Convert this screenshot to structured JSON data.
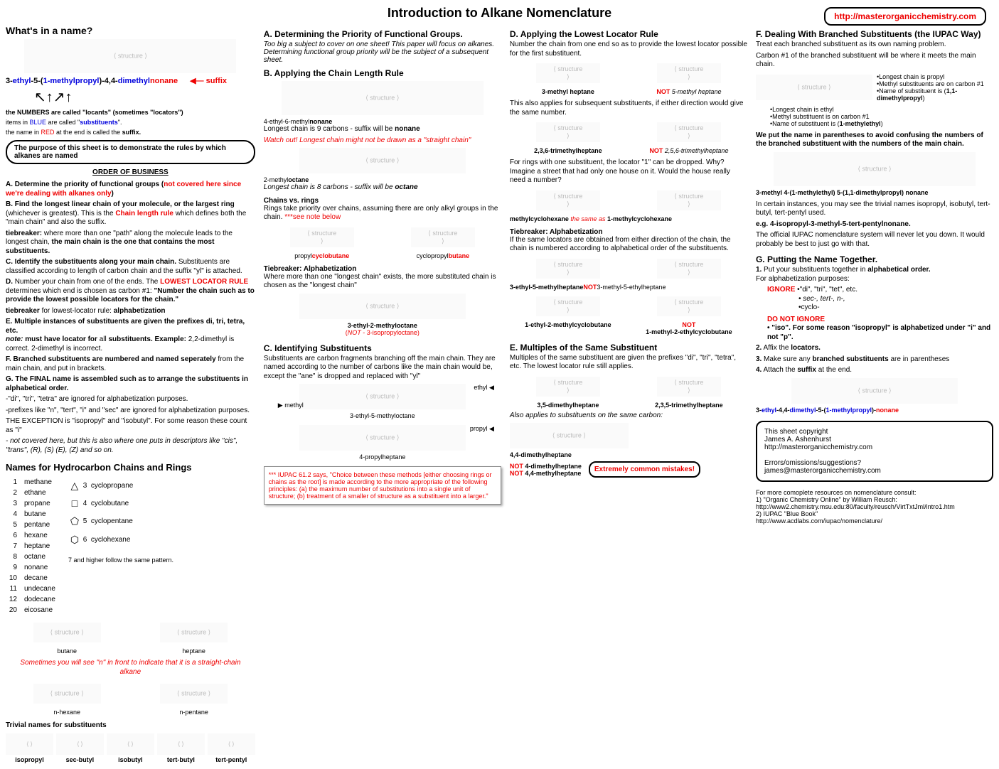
{
  "title": "Introduction to Alkane Nomenclature",
  "url": "http://masterorganicchemistry.com",
  "col1": {
    "whats": "What's in a name?",
    "example": {
      "p1": "3-",
      "p2": "ethyl",
      "p3": "-5-(",
      "p4": "1-methylpropyl",
      "p5": ")-4,4-",
      "p6": "dimethyl",
      "p7": "nonane",
      "arrow_label": "suffix"
    },
    "notes_a": "the NUMBERS are called \"locants\" (sometimes \"locators\")",
    "notes_b1": "items in ",
    "notes_b2": "BLUE",
    "notes_b3": " are called \"",
    "notes_b4": "substituents",
    "notes_b5": "\".",
    "notes_c1": "the name in ",
    "notes_c2": "RED",
    "notes_c3": " at the end is called the ",
    "notes_c4": "suffix.",
    "purpose": "The purpose of this sheet is to demonstrate the rules by which alkanes are named",
    "order_hdr": "ORDER OF BUSINESS",
    "oA1": "A. Determine the priority of functional groups (",
    "oA2": "not covered here since we're dealing with alkanes only",
    "oA3": ")",
    "oB1": "B. Find the longest linear chain of your molecule, or the largest ring ",
    "oB2": "(whichever is greatest). This is the ",
    "oB3": "Chain length rule",
    "oB4": " which defines both the \"main chain\" and also the suffix.",
    "oBtb1": "tiebreaker: ",
    "oBtb2": "where more than one \"path\" along the molecule leads to the longest chain, ",
    "oBtb3": "the main chain is the one that contains the most substituents.",
    "oC": "C. Identify the substituents along your main chain. ",
    "oC2": "Substituents are classified according to length of carbon chain and the suffix \"yl\" is attached.",
    "oD1": "D. ",
    "oD2": "Number your chain from one of the ends. The ",
    "oD3": "LOWEST LOCATOR RULE",
    "oD4": " determines which end is chosen as carbon #1: ",
    "oD5": "\"Number the chain such as to provide the lowest possible locators for the chain.\"",
    "oDtb1": "tiebreaker ",
    "oDtb2": "for lowest-locator rule: ",
    "oDtb3": "alphabetization",
    "oE1": "E. Multiple instances of substituents are given the prefixes di, tri, tetra, etc.",
    "oE2": "note:",
    "oE3": " must have locator for ",
    "oE4": "all ",
    "oE5": "substituents. Example: ",
    "oE6": "2,2-dimethyl is correct. 2-dimethyl is incorrect.",
    "oF": "F. Branched substituents are numbered and named seperately ",
    "oF2": "from the main chain, and put in brackets.",
    "oG": "G. The FINAL name is assembled such as to arrange the substituents in alphabetical order.",
    "oG1": "-\"di\", \"tri\", \"tetra\" are ignored for alphabetization purposes.",
    "oG2": "-prefixes like \"n\", \"tert\", \"i\" and \"sec\" are ignored for alphabetization purposes.",
    "oG3": "THE EXCEPTION is \"isopropyl\" and \"isobutyl\". For some reason these count as \"i\"",
    "oG4": "- not covered here, but this is also where one puts in descriptors like \"cis\", \"trans\", (R), (S) (E), (Z) and so on.",
    "chains_hdr": "Names for Hydrocarbon Chains and Rings",
    "chains": [
      {
        "n": "1",
        "name": "methane"
      },
      {
        "n": "2",
        "name": "ethane"
      },
      {
        "n": "3",
        "name": "propane"
      },
      {
        "n": "4",
        "name": "butane"
      },
      {
        "n": "5",
        "name": "pentane"
      },
      {
        "n": "6",
        "name": "hexane"
      },
      {
        "n": "7",
        "name": "heptane"
      },
      {
        "n": "8",
        "name": "octane"
      },
      {
        "n": "9",
        "name": "nonane"
      },
      {
        "n": "10",
        "name": "decane"
      },
      {
        "n": "11",
        "name": "undecane"
      },
      {
        "n": "12",
        "name": "dodecane"
      },
      {
        "n": "20",
        "name": "eicosane"
      }
    ],
    "rings": [
      {
        "n": "3",
        "name": "cyclopropane",
        "sym": "△"
      },
      {
        "n": "4",
        "name": "cyclobutane",
        "sym": "□"
      },
      {
        "n": "5",
        "name": "cyclopentane",
        "sym": "⬠"
      },
      {
        "n": "6",
        "name": "cyclohexane",
        "sym": "⬡"
      }
    ],
    "rings_note": "7 and higher follow the same pattern.",
    "butane_lbl": "butane",
    "heptane_lbl": "heptane",
    "n_note": "Sometimes you will see \"n\" in front to indicate that it is a straight-chain alkane",
    "nhex": "n-hexane",
    "npen": "n-pentane",
    "triv_hdr": "Trivial names for substituents",
    "triv": [
      "isopropyl",
      "sec-butyl",
      "isobutyl",
      "tert-butyl",
      "tert-pentyl"
    ]
  },
  "col2": {
    "A_title": "A. Determining the Priority of Functional Groups.",
    "A_sub": "Too big a subject to cover on one sheet! This paper will focus on alkanes. Determining functional group priority will be the subject of a subsequent sheet.",
    "B_title": "B. Applying the Chain Length Rule",
    "B_lbl1a": "4-ethyl-6-methyl",
    "B_lbl1b": "nonane",
    "B_txt1": "Longest chain is 9 carbons - suffix will be ",
    "B_txt1b": "nonane",
    "B_warn": "Watch out! Longest chain might not be drawn as a \"straight chain\"",
    "B_lbl2a": "2-methyl",
    "B_lbl2b": "octane",
    "B_txt2": "Longest chain is 8 carbons - suffix will be ",
    "B_txt2b": "octane",
    "B_cvr_h": "Chains vs. rings",
    "B_cvr": "Rings take priority over chains, assuming there are only alkyl groups in the chain. ",
    "B_cvr_note": "***see note below",
    "B_ring1a": "propyl",
    "B_ring1b": "cyclobutane",
    "B_ring2a": "cyclopropyl",
    "B_ring2b": "butane",
    "B_tb_h": "Tiebreaker: Alphabetization",
    "B_tb": "Where more than one \"longest chain\" exists, the more substituted chain is chosen as the \"longest chain\"",
    "B_tb_lbl1": "3-ethyl-2-methyloctane",
    "B_tb_lbl2a": "(",
    "B_tb_lbl2b": "NOT",
    "B_tb_lbl2c": " - 3-isopropyloctane)",
    "C_title": "C. Identifying Substituents",
    "C_txt": "Substituents are carbon fragments branching off the main chain. They are named according to the number of carbons like the main chain would be, except the \"ane\" is dropped and replaced with \"yl\"",
    "C_ethyl": "ethyl",
    "C_methyl": "methyl",
    "C_lbl1": "3-ethyl-5-methyloctane",
    "C_propyl": "propyl",
    "C_lbl2": "4-propylheptane",
    "iupac_note": "*** IUPAC 61.2 says, \"Choice between these methods [either choosing rings or chains as the root] is made according to the more appropriate of the following principles: (a) the maximum number of substitutions into a single unit of structure; (b) treatment of a smaller of structure as a substituent into a larger.\""
  },
  "col3": {
    "D_title": "D. Applying the Lowest Locator Rule",
    "D_txt1": "Number the chain from one end so as to provide the lowest locator possible for the first substituent.",
    "D_lbl1": "3-methyl heptane",
    "D_not1a": "NOT",
    "D_not1b": " 5-methyl heptane",
    "D_txt2": "This also applies for subsequent substituents, if either direction would give the same number.",
    "D_lbl2": "2,3,6-trimethylheptane",
    "D_not2a": "NOT",
    "D_not2b": " 2,5,6-trimethylheptane",
    "D_txt3": "For rings with one substituent, the locator \"1\" can be dropped. Why? Imagine a street that had only one house on it. Would the house really need a number?",
    "D_lbl3a": "methylcyclohexane",
    "D_lbl3b": "the same as",
    "D_lbl3c": " 1-methylcyclohexane",
    "D_tb_h": "Tiebreaker: Alphabetization",
    "D_tb": "If the same locators are obtained from either direction of the chain, the chain is numbered according to alphabetical order of the substituents.",
    "D_lbl4": "3-ethyl-5-methylheptane",
    "D_not4a": "NOT",
    "D_not4b": "3-methyl-5-ethylheptane",
    "D_lbl5": "1-ethyl-2-methylcyclobutane",
    "D_not5a": "NOT",
    "D_not5b": "1-methyl-2-ethylcyclobutane",
    "E_title": "E. Multiples of the Same Substituent",
    "E_txt": "Multiples of the same substituent are given the prefixes \"di\", \"tri\", \"tetra\", etc. The lowest locator rule still applies.",
    "E_lbl1": "3,5-dimethylheptane",
    "E_lbl2": "2,3,5-trimethylheptane",
    "E_txt2": "Also applies to substituents on the same carbon:",
    "E_lbl3": "4,4-dimethylheptane",
    "E_not1a": "NOT",
    "E_not1b": " 4-dimethylheptane",
    "E_not2a": "NOT",
    "E_not2b": " 4,4-methylheptane",
    "E_warn": "Extremely common mistakes!"
  },
  "col4": {
    "F_title": "F. Dealing With Branched Substituents (the IUPAC Way)",
    "F_txt1": "Treat each branched substituent as its own naming problem.",
    "F_txt2": "Carbon #1 of the branched substituent will be where it meets the main chain.",
    "F_b1": "•Longest chain is propyl",
    "F_b2": "•Methyl substituents are on carbon #1",
    "F_b3": "•Name of substituent is (",
    "F_b3b": "1,1-dimethylpropyl",
    "F_b3c": ")",
    "F_c1": "•Longest chain is ethyl",
    "F_c2": "•Methyl substituent is on carbon #1",
    "F_c3": "•Name of substituent is (",
    "F_c3b": "1-methylethyl",
    "F_c3c": ")",
    "F_txt3": "We put the name in parentheses to avoid confusing the numbers of the branched substituent with the numbers of the main chain.",
    "F_bigname": "3-methyl 4-(1-methylethyl) 5-(1,1-dimethylpropyl) nonane",
    "F_txt4": "In certain instances, you may see the trivial names isopropyl, isobutyl, tert-butyl, tert-pentyl used.",
    "F_eg": "e.g. 4-isopropyl-3-methyl-5-tert-pentylnonane.",
    "F_txt5": "The official IUPAC nomenclature system will never let you down. It would probably be best to just go with that.",
    "G_title": "G. Putting the Name Together.",
    "G1a": "1.",
    "G1b": " Put your substituents together in ",
    "G1c": "alphabetical order.",
    "G1d": "For alphabetization purposes:",
    "G_ign": "IGNORE",
    "G_ign1": " •\"di\", \"tri\", \"tet\", etc.",
    "G_ign2": "• sec-, tert-, n-,",
    "G_ign3": "•cyclo-",
    "G_dni": "DO NOT IGNORE",
    "G_dni1": "• \"iso\". For some reason \"isopropyl\" is alphabetized under \"i\" and not \"p\".",
    "G2a": "2.",
    "G2b": " Affix the ",
    "G2c": "locators.",
    "G3a": "3.",
    "G3b": " Make sure any ",
    "G3c": "branched substituents",
    "G3d": " are in parentheses",
    "G4a": "4.",
    "G4b": " Attach the ",
    "G4c": "suffix",
    "G4d": " at the end.",
    "G_final_1": "3-",
    "G_final_2": "ethyl",
    "G_final_3": "-4,4-",
    "G_final_4": "dimethyl",
    "G_final_5": "-5-(",
    "G_final_6": "1-methylpropyl",
    "G_final_7": ")-",
    "G_final_8": "nonane",
    "copy1": "This sheet copyright",
    "copy2": "James A. Ashenhurst",
    "copy3": "http://masterorganicchemistry.com",
    "copy4": "Errors/omissions/suggestions?",
    "copy5": "james@masterorganicchemistry.com",
    "res1": "For more comoplete resources on nomenclature consult:",
    "res2": "1) \"Organic Chemistry Online\" by William Reusch:",
    "res3": "http://www2.chemistry.msu.edu:80/faculty/reusch/VirtTxtJml/intro1.htm",
    "res4": "2) IUPAC \"Blue Book\"",
    "res5": "http://www.acdlabs.com/iupac/nomenclature/"
  }
}
